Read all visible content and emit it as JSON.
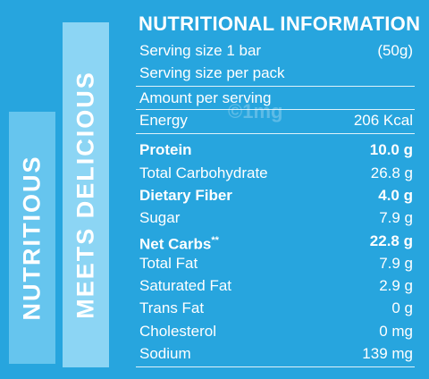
{
  "banners": {
    "left": "NUTRITIOUS",
    "right": "MEETS DELICIOUS"
  },
  "panel": {
    "title": "NUTRITIONAL INFORMATION",
    "serving": [
      {
        "label": "Serving size 1 bar",
        "value": "(50g)"
      },
      {
        "label": "Serving size per pack"
      }
    ],
    "amount_label": "Amount per serving",
    "watermark": "©1mg",
    "rows": [
      {
        "label": "Energy",
        "value": "206 Kcal"
      },
      {
        "label": "Protein",
        "value": "10.0 g",
        "bold": true
      },
      {
        "label": "Total Carbohydrate",
        "value": "26.8 g"
      },
      {
        "label": "Dietary Fiber",
        "value": "4.0 g",
        "bold": true
      },
      {
        "label": "Sugar",
        "value": "7.9 g"
      },
      {
        "label": "Net Carbs",
        "note": "**",
        "value": "22.8 g",
        "bold": true
      },
      {
        "label": "Total Fat",
        "value": "7.9 g"
      },
      {
        "label": "Saturated Fat",
        "value": "2.9 g"
      },
      {
        "label": "Trans Fat",
        "value": "0 g"
      },
      {
        "label": "Cholesterol",
        "value": "0 mg"
      },
      {
        "label": "Sodium",
        "value": "139 mg"
      }
    ]
  }
}
